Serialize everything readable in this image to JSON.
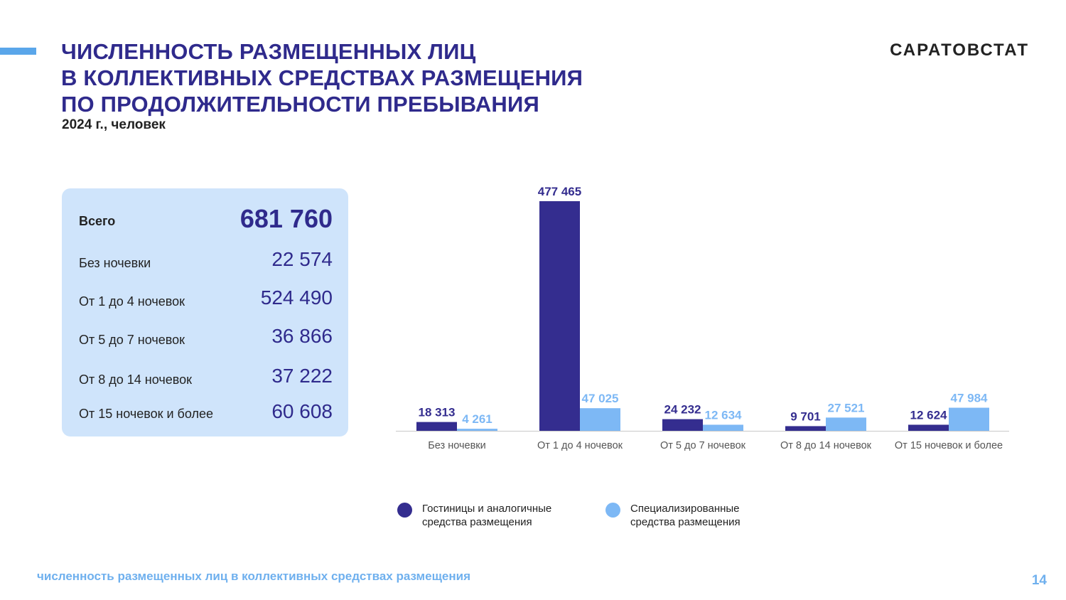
{
  "header": {
    "title_lines": [
      "ЧИСЛЕННОСТЬ РАЗМЕЩЕННЫХ ЛИЦ",
      "В КОЛЛЕКТИВНЫХ СРЕДСТВАХ РАЗМЕЩЕНИЯ",
      "ПО ПРОДОЛЖИТЕЛЬНОСТИ ПРЕБЫВАНИЯ"
    ],
    "subtitle": "2024 г., человек",
    "brand": "САРАТОВСТАТ"
  },
  "summary": {
    "total_label": "Всего",
    "total_value": "681 760",
    "rows": [
      {
        "label": "Без ночевки",
        "value": "22 574"
      },
      {
        "label": "От 1 до 4 ночевок",
        "value": "524 490"
      },
      {
        "label": "От 5 до 7 ночевок",
        "value": "36 866"
      },
      {
        "label": "От 8 до 14 ночевок",
        "value": "37 222"
      },
      {
        "label": "От 15 ночевок и более",
        "value": "60 608"
      }
    ]
  },
  "chart_data": {
    "type": "bar",
    "categories": [
      "Без ночевки",
      "От 1 до 4 ночевок",
      "От 5 до 7 ночевок",
      "От 8 до 14 ночевок",
      "От 15 ночевок и более"
    ],
    "series": [
      {
        "name": "Гостиницы и аналогичные средства размещения",
        "color": "#342d8f",
        "values": [
          18313,
          477465,
          24232,
          9701,
          12624
        ],
        "labels": [
          "18 313",
          "477 465",
          "24 232",
          "9 701",
          "12 624"
        ]
      },
      {
        "name": "Специализированные средства размещения",
        "color": "#7db8f5",
        "values": [
          4261,
          47025,
          12634,
          27521,
          47984
        ],
        "labels": [
          "4 261",
          "47 025",
          "12 634",
          "27 521",
          "47 984"
        ]
      }
    ],
    "title": "",
    "xlabel": "",
    "ylabel": "",
    "ylim": [
      0,
      477465
    ],
    "grid": false,
    "legend": "bottom"
  },
  "legend": {
    "items": [
      {
        "text_line1": "Гостиницы и аналогичные",
        "text_line2": "средства размещения",
        "color": "#342d8f"
      },
      {
        "text_line1": "Специализированные",
        "text_line2": "средства размещения",
        "color": "#7db8f5"
      }
    ]
  },
  "footer": {
    "caption": "численность размещенных лиц в коллективных средствах размещения",
    "page_number": "14"
  },
  "colors": {
    "accent": "#5aa6ea",
    "title": "#2f2a8c",
    "panel": "#cfe4fb"
  }
}
